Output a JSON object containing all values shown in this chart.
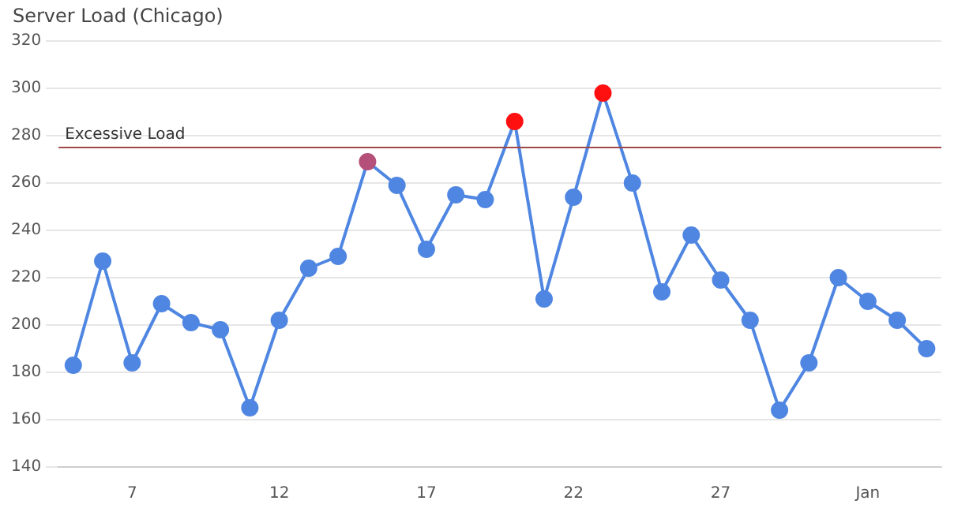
{
  "chart_data": {
    "type": "line",
    "title": "Server Load (Chicago)",
    "categories": [
      null,
      null,
      "7",
      null,
      null,
      null,
      null,
      "12",
      null,
      null,
      null,
      null,
      "17",
      null,
      null,
      null,
      null,
      "22",
      null,
      null,
      null,
      null,
      "27",
      null,
      null,
      null,
      null,
      "Jan",
      null,
      null
    ],
    "series": [
      {
        "color": "#4f86e2",
        "values": [
          183,
          227,
          184,
          209,
          201,
          198,
          165,
          202,
          224,
          229,
          269,
          259,
          232,
          255,
          253,
          286,
          211,
          254,
          298,
          260,
          214,
          238,
          219,
          202,
          164,
          184,
          220,
          210,
          202,
          190
        ],
        "colors": [
          "#4f86e2",
          "#4f86e2",
          "#4f86e2",
          "#4f86e2",
          "#4f86e2",
          "#4f86e2",
          "#4f86e2",
          "#4f86e2",
          "#4f86e2",
          "#4f86e2",
          "#b5507a",
          "#4f86e2",
          "#4f86e2",
          "#4f86e2",
          "#4f86e2",
          "#ff1010",
          "#4f86e2",
          "#4f86e2",
          "#ff1010",
          "#4f86e2",
          "#4f86e2",
          "#4f86e2",
          "#4f86e2",
          "#4f86e2",
          "#4f86e2",
          "#4f86e2",
          "#4f86e2",
          "#4f86e2",
          "#4f86e2",
          "#4f86e2"
        ]
      }
    ],
    "ylim": [
      140,
      320
    ],
    "yticks": [
      140,
      160,
      180,
      200,
      220,
      240,
      260,
      280,
      300,
      320
    ],
    "ref_lines": [
      {
        "axis": "y",
        "value": 275,
        "label": "Excessive Load",
        "color": "#a04848"
      }
    ],
    "grid": "y",
    "legend": false,
    "marker": "circle",
    "line_style": "solid"
  }
}
